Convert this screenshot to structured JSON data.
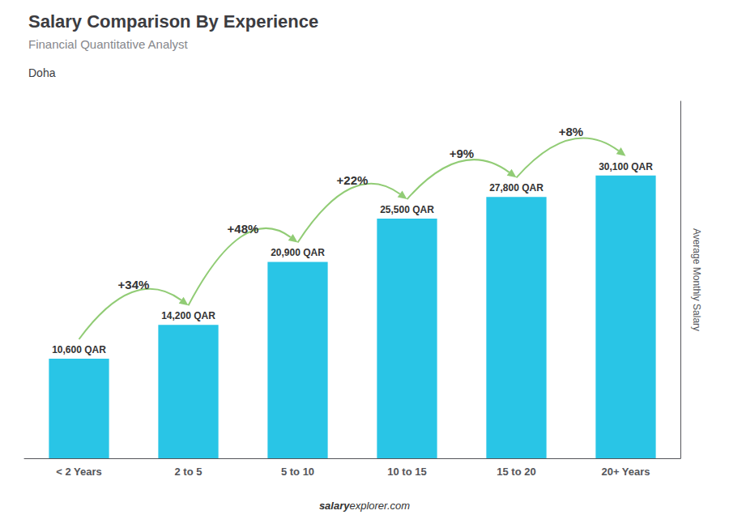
{
  "chart_data": {
    "type": "bar",
    "title": "Salary Comparison By Experience",
    "subtitle": "Financial Quantitative Analyst",
    "city": "Doha",
    "ylabel": "Average Monthly Salary",
    "categories": [
      "< 2 Years",
      "2 to 5",
      "5 to 10",
      "10 to 15",
      "15 to 20",
      "20+ Years"
    ],
    "values": [
      10600,
      14200,
      20900,
      25500,
      27800,
      30100
    ],
    "value_labels": [
      "10,600 QAR",
      "14,200 QAR",
      "20,900 QAR",
      "25,500 QAR",
      "27,800 QAR",
      "30,100 QAR"
    ],
    "data_labels": true,
    "annotations": [
      "+34%",
      "+48%",
      "+22%",
      "+9%",
      "+8%"
    ],
    "footer": [
      "salary",
      "explorer.com"
    ],
    "color": "#29c5e6",
    "ylim": [
      0,
      38000
    ],
    "grid": false,
    "tick_labels": "x"
  }
}
